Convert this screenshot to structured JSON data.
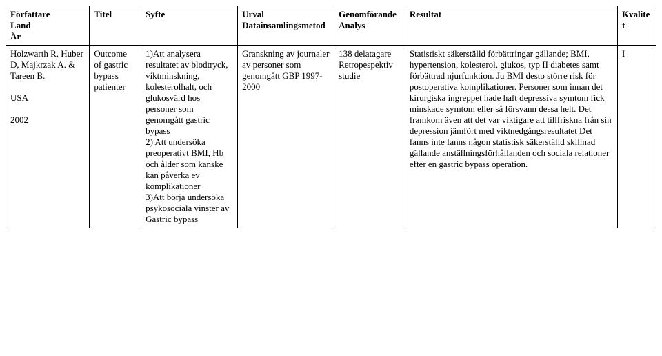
{
  "table": {
    "headers": {
      "author": "Författare\nLand\nÅr",
      "title": "Titel",
      "purpose": "Syfte",
      "sample": "Urval\nDatainsamlingsmetod",
      "conduct": "Genomförande\nAnalys",
      "result": "Resultat",
      "quality": "Kvalitet"
    },
    "row": {
      "author": "Holzwarth R, Huber D, Majkrzak A. & Tareen B.\n\nUSA\n\n2002",
      "title": "Outcome of gastric bypass patienter",
      "purpose": "1)Att analysera resultatet av blodtryck, viktminskning, kolesterolhalt, och glukosvärd hos personer som genomgått gastric bypass\n2) Att undersöka preoperativt BMI, Hb och ålder som kanske kan påverka ev komplikationer\n3)Att börja undersöka psykosociala vinster av Gastric bypass",
      "sample": "Granskning av journaler av personer som genomgått GBP 1997-2000",
      "conduct": "138 delatagare\nRetropespektiv studie",
      "result": "Statistiskt säkerställd förbättringar gällande; BMI, hypertension, kolesterol, glukos, typ II diabetes samt förbättrad njurfunktion. Ju BMI desto större risk för postoperativa komplikationer. Personer som innan det kirurgiska ingreppet hade haft depressiva symtom fick minskade symtom eller så försvann dessa helt. Det framkom även att det var viktigare att tillfriskna från sin depression jämfört med viktnedgångsresultatet Det fanns inte fanns någon statistisk säkerställd skillnad gällande anställningsförhållanden och sociala relationer efter en gastric bypass operation.",
      "quality": "I"
    }
  }
}
